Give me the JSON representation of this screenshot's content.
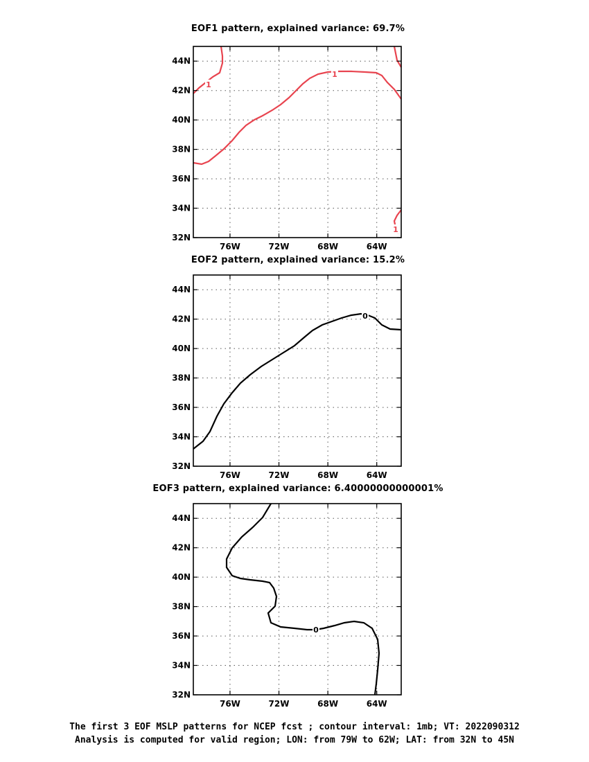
{
  "panels": [
    {
      "title": "EOF1 pattern, explained variance: 69.7%",
      "contour_color": "#e8444f",
      "contour_labels": [
        "1",
        "1",
        "1"
      ]
    },
    {
      "title": "EOF2 pattern, explained variance: 15.2%",
      "contour_color": "#000000",
      "contour_labels": [
        "0"
      ]
    },
    {
      "title": "EOF3 pattern, explained variance: 6.40000000000001%",
      "contour_color": "#000000",
      "contour_labels": [
        "0"
      ]
    }
  ],
  "axes": {
    "lon_range": [
      -79,
      -62
    ],
    "lat_range": [
      32,
      45
    ],
    "lon_ticks": [
      {
        "value": -76,
        "label": "76W"
      },
      {
        "value": -72,
        "label": "72W"
      },
      {
        "value": -68,
        "label": "68W"
      },
      {
        "value": -64,
        "label": "64W"
      }
    ],
    "lat_ticks": [
      {
        "value": 32,
        "label": "32N"
      },
      {
        "value": 34,
        "label": "34N"
      },
      {
        "value": 36,
        "label": "36N"
      },
      {
        "value": 38,
        "label": "38N"
      },
      {
        "value": 40,
        "label": "40N"
      },
      {
        "value": 42,
        "label": "42N"
      },
      {
        "value": 44,
        "label": "44N"
      }
    ],
    "grid": true
  },
  "coast_color": "#e8954a",
  "caption": {
    "line1": "The first 3 EOF MSLP patterns for NCEP fcst ; contour interval: 1mb; VT: 2022090312",
    "line2": "Analysis is computed for valid region; LON: from 79W to 62W; LAT: from 32N to 45N"
  }
}
